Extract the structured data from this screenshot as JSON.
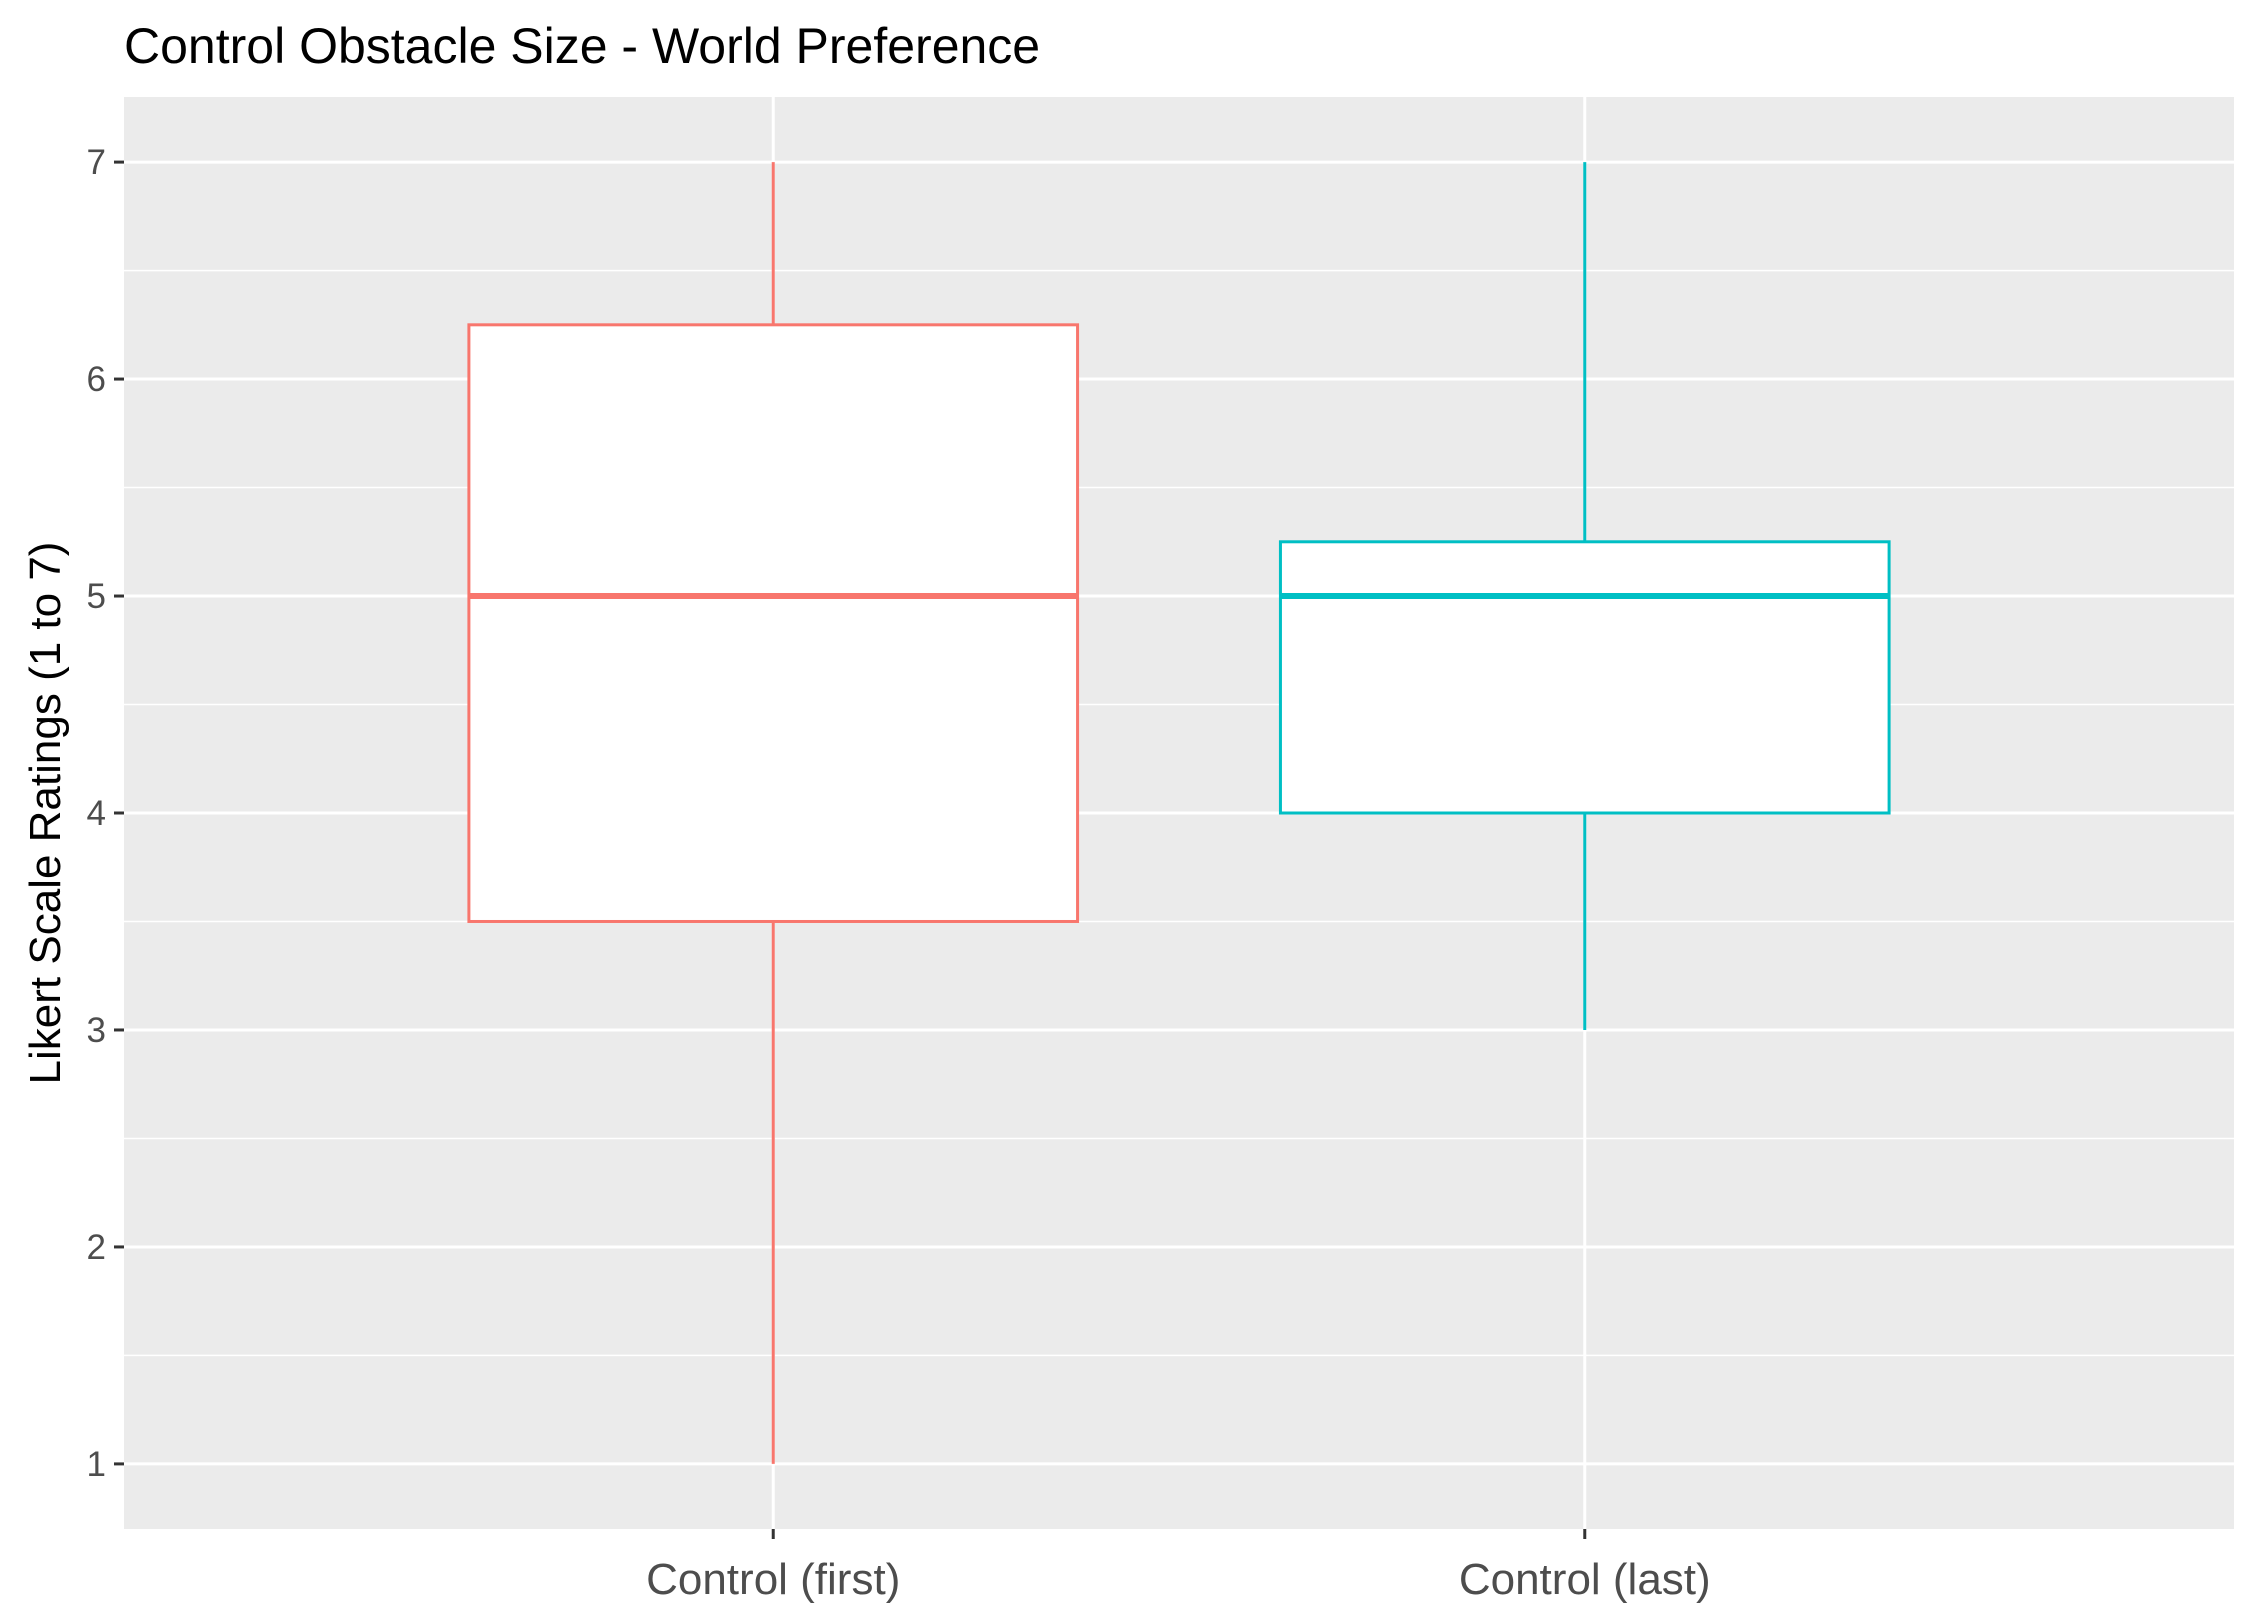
{
  "chart_data": {
    "type": "boxplot",
    "title": "Control Obstacle Size  - World Preference",
    "xlabel": "",
    "ylabel": "Likert Scale Ratings (1 to 7)",
    "ylim": [
      0.7,
      7.3
    ],
    "yticks": [
      1,
      2,
      3,
      4,
      5,
      6,
      7
    ],
    "grid": true,
    "legend": "none",
    "categories": [
      "Control (first)",
      "Control (last)"
    ],
    "boxes": [
      {
        "category": "Control (first)",
        "min": 1,
        "q1": 3.5,
        "median": 5,
        "q3": 6.25,
        "max": 7,
        "color": "#F8766D"
      },
      {
        "category": "Control (last)",
        "min": 3,
        "q1": 4,
        "median": 5,
        "q3": 5.25,
        "max": 7,
        "color": "#00BFC4"
      }
    ]
  }
}
